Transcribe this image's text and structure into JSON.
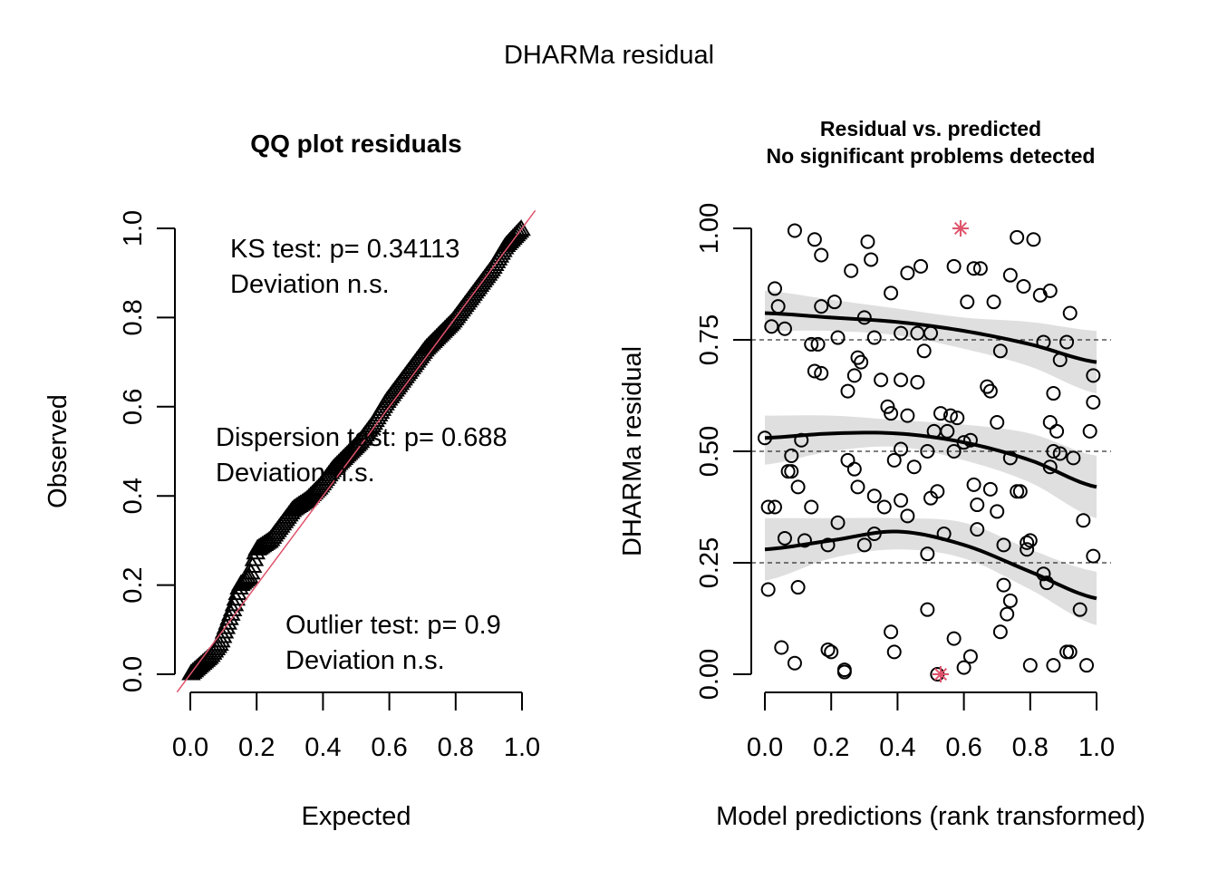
{
  "outer_title": "DHARMa residual",
  "chart_data": [
    {
      "type": "scatter",
      "title": "QQ plot residuals",
      "xlabel": "Expected",
      "ylabel": "Observed",
      "xlim": [
        0,
        1
      ],
      "ylim": [
        0,
        1
      ],
      "xticks": [
        "0.0",
        "0.2",
        "0.4",
        "0.6",
        "0.8",
        "1.0"
      ],
      "yticks": [
        "0.0",
        "0.2",
        "0.4",
        "0.6",
        "0.8",
        "1.0"
      ],
      "marker": "triangle",
      "reference_line": {
        "slope": 1,
        "intercept": 0,
        "color": "#df536b"
      },
      "annotations": [
        {
          "line1": "KS test: p= 0.34113",
          "line2": "Deviation  n.s."
        },
        {
          "line1": "Dispersion test: p= 0.688",
          "line2": "Deviation  n.s."
        },
        {
          "line1": "Outlier test: p= 0.9",
          "line2": "Deviation  n.s."
        }
      ],
      "points": {
        "n": 200,
        "expected_range": [
          0,
          1
        ],
        "observed_quantile_profile": [
          [
            0.0,
            0.0
          ],
          [
            0.03,
            0.02
          ],
          [
            0.06,
            0.04
          ],
          [
            0.09,
            0.07
          ],
          [
            0.11,
            0.11
          ],
          [
            0.13,
            0.15
          ],
          [
            0.15,
            0.2
          ],
          [
            0.18,
            0.22
          ],
          [
            0.2,
            0.28
          ],
          [
            0.24,
            0.3
          ],
          [
            0.27,
            0.33
          ],
          [
            0.31,
            0.37
          ],
          [
            0.35,
            0.39
          ],
          [
            0.39,
            0.42
          ],
          [
            0.43,
            0.46
          ],
          [
            0.47,
            0.49
          ],
          [
            0.51,
            0.52
          ],
          [
            0.55,
            0.56
          ],
          [
            0.59,
            0.61
          ],
          [
            0.63,
            0.65
          ],
          [
            0.67,
            0.69
          ],
          [
            0.71,
            0.73
          ],
          [
            0.75,
            0.76
          ],
          [
            0.79,
            0.79
          ],
          [
            0.83,
            0.83
          ],
          [
            0.87,
            0.87
          ],
          [
            0.91,
            0.91
          ],
          [
            0.95,
            0.96
          ],
          [
            1.0,
            1.0
          ]
        ]
      }
    },
    {
      "type": "scatter",
      "title": "Residual vs. predicted",
      "subtitle": "No significant problems detected",
      "xlabel": "Model predictions (rank transformed)",
      "ylabel": "DHARMa residual",
      "xlim": [
        0,
        1
      ],
      "ylim": [
        0,
        1
      ],
      "xticks": [
        "0.0",
        "0.2",
        "0.4",
        "0.6",
        "0.8",
        "1.0"
      ],
      "yticks": [
        "0.00",
        "0.25",
        "0.50",
        "0.75",
        "1.00"
      ],
      "hlines": [
        0.25,
        0.5,
        0.75
      ],
      "outlier_color": "#df536b",
      "outliers": [
        {
          "x": 0.59,
          "y": 1.0
        },
        {
          "x": 0.53,
          "y": 0.0
        }
      ],
      "quantile_curves": [
        {
          "q": 0.75,
          "x": [
            0,
            0.2,
            0.4,
            0.6,
            0.8,
            1.0
          ],
          "y": [
            0.81,
            0.8,
            0.79,
            0.77,
            0.74,
            0.7
          ],
          "band_lo": [
            0.77,
            0.77,
            0.76,
            0.73,
            0.69,
            0.63
          ],
          "band_hi": [
            0.86,
            0.84,
            0.82,
            0.8,
            0.79,
            0.77
          ]
        },
        {
          "q": 0.5,
          "x": [
            0,
            0.2,
            0.4,
            0.6,
            0.8,
            1.0
          ],
          "y": [
            0.53,
            0.54,
            0.54,
            0.52,
            0.48,
            0.42
          ],
          "band_lo": [
            0.47,
            0.5,
            0.51,
            0.48,
            0.43,
            0.35
          ],
          "band_hi": [
            0.58,
            0.58,
            0.57,
            0.56,
            0.54,
            0.49
          ]
        },
        {
          "q": 0.25,
          "x": [
            0,
            0.2,
            0.4,
            0.6,
            0.8,
            1.0
          ],
          "y": [
            0.28,
            0.3,
            0.32,
            0.29,
            0.23,
            0.17
          ],
          "band_lo": [
            0.21,
            0.26,
            0.28,
            0.26,
            0.19,
            0.11
          ],
          "band_hi": [
            0.35,
            0.35,
            0.35,
            0.34,
            0.28,
            0.23
          ]
        }
      ],
      "points": [
        [
          0.09,
          0.995
        ],
        [
          0.15,
          0.975
        ],
        [
          0.31,
          0.97
        ],
        [
          0.17,
          0.94
        ],
        [
          0.32,
          0.93
        ],
        [
          0.26,
          0.905
        ],
        [
          0.43,
          0.9
        ],
        [
          0.47,
          0.915
        ],
        [
          0.57,
          0.915
        ],
        [
          0.63,
          0.91
        ],
        [
          0.65,
          0.91
        ],
        [
          0.74,
          0.895
        ],
        [
          0.78,
          0.87
        ],
        [
          0.76,
          0.98
        ],
        [
          0.81,
          0.975
        ],
        [
          0.83,
          0.85
        ],
        [
          0.86,
          0.86
        ],
        [
          0.92,
          0.81
        ],
        [
          0.03,
          0.865
        ],
        [
          0.04,
          0.825
        ],
        [
          0.17,
          0.825
        ],
        [
          0.21,
          0.835
        ],
        [
          0.38,
          0.855
        ],
        [
          0.61,
          0.835
        ],
        [
          0.69,
          0.835
        ],
        [
          0.02,
          0.78
        ],
        [
          0.06,
          0.775
        ],
        [
          0.3,
          0.8
        ],
        [
          0.33,
          0.755
        ],
        [
          0.41,
          0.765
        ],
        [
          0.46,
          0.765
        ],
        [
          0.5,
          0.765
        ],
        [
          0.22,
          0.755
        ],
        [
          0.16,
          0.74
        ],
        [
          0.14,
          0.74
        ],
        [
          0.71,
          0.725
        ],
        [
          0.84,
          0.745
        ],
        [
          0.91,
          0.745
        ],
        [
          0.89,
          0.705
        ],
        [
          0.48,
          0.725
        ],
        [
          0.15,
          0.68
        ],
        [
          0.17,
          0.675
        ],
        [
          0.27,
          0.67
        ],
        [
          0.28,
          0.71
        ],
        [
          0.29,
          0.7
        ],
        [
          0.35,
          0.66
        ],
        [
          0.41,
          0.66
        ],
        [
          0.46,
          0.655
        ],
        [
          0.25,
          0.635
        ],
        [
          0.67,
          0.645
        ],
        [
          0.68,
          0.635
        ],
        [
          0.99,
          0.67
        ],
        [
          0.87,
          0.63
        ],
        [
          0.99,
          0.61
        ],
        [
          0.37,
          0.6
        ],
        [
          0.38,
          0.585
        ],
        [
          0.43,
          0.58
        ],
        [
          0.53,
          0.585
        ],
        [
          0.56,
          0.58
        ],
        [
          0.58,
          0.575
        ],
        [
          0.7,
          0.565
        ],
        [
          0.51,
          0.545
        ],
        [
          0.55,
          0.545
        ],
        [
          0.62,
          0.525
        ],
        [
          0.6,
          0.52
        ],
        [
          0.88,
          0.545
        ],
        [
          0.98,
          0.545
        ],
        [
          0.86,
          0.565
        ],
        [
          0.0,
          0.53
        ],
        [
          0.11,
          0.525
        ],
        [
          0.39,
          0.48
        ],
        [
          0.41,
          0.505
        ],
        [
          0.45,
          0.465
        ],
        [
          0.49,
          0.5
        ],
        [
          0.57,
          0.5
        ],
        [
          0.25,
          0.48
        ],
        [
          0.27,
          0.46
        ],
        [
          0.07,
          0.455
        ],
        [
          0.08,
          0.455
        ],
        [
          0.08,
          0.49
        ],
        [
          0.74,
          0.485
        ],
        [
          0.87,
          0.5
        ],
        [
          0.89,
          0.495
        ],
        [
          0.93,
          0.485
        ],
        [
          0.86,
          0.465
        ],
        [
          0.1,
          0.42
        ],
        [
          0.28,
          0.42
        ],
        [
          0.33,
          0.4
        ],
        [
          0.36,
          0.375
        ],
        [
          0.41,
          0.39
        ],
        [
          0.5,
          0.395
        ],
        [
          0.52,
          0.41
        ],
        [
          0.63,
          0.425
        ],
        [
          0.64,
          0.38
        ],
        [
          0.68,
          0.415
        ],
        [
          0.7,
          0.365
        ],
        [
          0.76,
          0.41
        ],
        [
          0.77,
          0.41
        ],
        [
          0.96,
          0.345
        ],
        [
          0.01,
          0.375
        ],
        [
          0.03,
          0.375
        ],
        [
          0.14,
          0.375
        ],
        [
          0.06,
          0.305
        ],
        [
          0.12,
          0.3
        ],
        [
          0.19,
          0.29
        ],
        [
          0.22,
          0.34
        ],
        [
          0.3,
          0.29
        ],
        [
          0.33,
          0.315
        ],
        [
          0.43,
          0.355
        ],
        [
          0.54,
          0.315
        ],
        [
          0.64,
          0.325
        ],
        [
          0.72,
          0.29
        ],
        [
          0.79,
          0.28
        ],
        [
          0.8,
          0.3
        ],
        [
          0.79,
          0.295
        ],
        [
          0.99,
          0.265
        ],
        [
          0.49,
          0.27
        ],
        [
          0.84,
          0.225
        ],
        [
          0.85,
          0.205
        ],
        [
          0.72,
          0.2
        ],
        [
          0.74,
          0.165
        ],
        [
          0.95,
          0.145
        ],
        [
          0.01,
          0.19
        ],
        [
          0.1,
          0.195
        ],
        [
          0.49,
          0.145
        ],
        [
          0.71,
          0.095
        ],
        [
          0.73,
          0.135
        ],
        [
          0.05,
          0.06
        ],
        [
          0.09,
          0.025
        ],
        [
          0.19,
          0.055
        ],
        [
          0.2,
          0.05
        ],
        [
          0.24,
          0.01
        ],
        [
          0.24,
          0.005
        ],
        [
          0.38,
          0.095
        ],
        [
          0.39,
          0.05
        ],
        [
          0.52,
          0.0
        ],
        [
          0.57,
          0.08
        ],
        [
          0.6,
          0.015
        ],
        [
          0.62,
          0.04
        ],
        [
          0.8,
          0.02
        ],
        [
          0.87,
          0.02
        ],
        [
          0.91,
          0.05
        ],
        [
          0.92,
          0.05
        ],
        [
          0.97,
          0.02
        ]
      ]
    }
  ]
}
